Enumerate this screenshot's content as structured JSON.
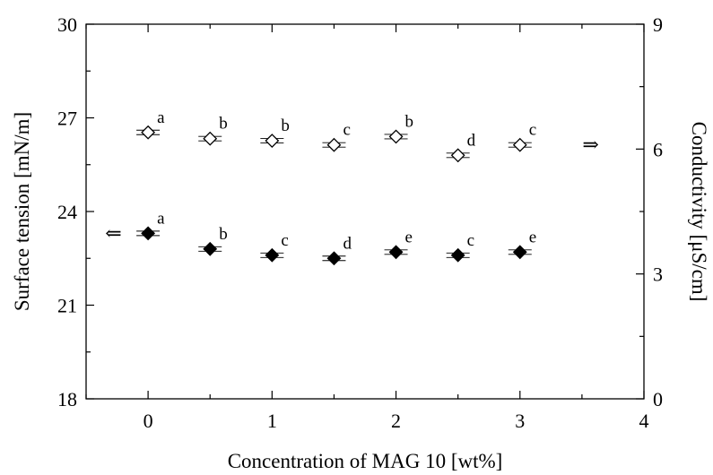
{
  "chart_data": {
    "type": "scatter",
    "xlabel": "Concentration of MAG 10 [wt%]",
    "ylabel": "Surface tension [mN/m]",
    "y2label": "Conductivity [μS/cm]",
    "xlim": [
      -0.5,
      4
    ],
    "ylim": [
      18,
      30
    ],
    "y2lim": [
      0,
      9
    ],
    "x_ticks": [
      0,
      1,
      2,
      3,
      4
    ],
    "y_ticks": [
      18,
      21,
      24,
      27,
      30
    ],
    "y2_ticks": [
      0,
      3,
      6,
      9
    ],
    "grid": false,
    "series": [
      {
        "axis": "left",
        "marker": "filled-diamond",
        "arrow": "⇐",
        "arrow_at": {
          "x": -0.28,
          "y": 23.3
        },
        "x": [
          0,
          0.5,
          1,
          1.5,
          2,
          2.5,
          3
        ],
        "y": [
          23.3,
          22.8,
          22.6,
          22.5,
          22.7,
          22.6,
          22.7
        ],
        "letters": [
          "a",
          "b",
          "c",
          "d",
          "e",
          "c",
          "e"
        ]
      },
      {
        "axis": "right",
        "marker": "open-diamond",
        "arrow": "⇒",
        "arrow_at": {
          "x": 3.57,
          "y": 6.1
        },
        "x": [
          0,
          0.5,
          1,
          1.5,
          2,
          2.5,
          3
        ],
        "y": [
          6.4,
          6.25,
          6.2,
          6.1,
          6.3,
          5.85,
          6.1
        ],
        "letters": [
          "a",
          "b",
          "b",
          "c",
          "b",
          "d",
          "c"
        ]
      }
    ]
  }
}
